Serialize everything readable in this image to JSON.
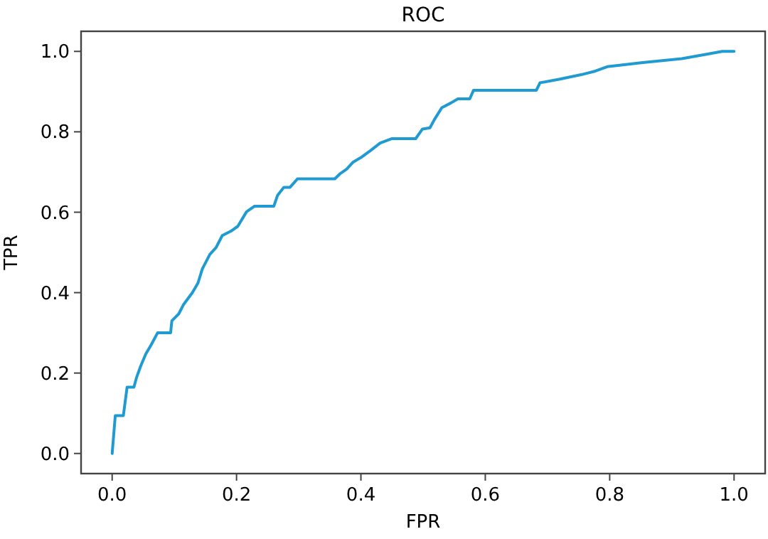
{
  "chart_data": {
    "type": "line",
    "title": "ROC",
    "xlabel": "FPR",
    "ylabel": "TPR",
    "xlim": [
      -0.05,
      1.05
    ],
    "ylim": [
      -0.05,
      1.05
    ],
    "xticks": [
      {
        "value": 0,
        "label": "0.0"
      },
      {
        "value": 0.2,
        "label": "0.2"
      },
      {
        "value": 0.4,
        "label": "0.4"
      },
      {
        "value": 0.6,
        "label": "0.6"
      },
      {
        "value": 0.8,
        "label": "0.8"
      },
      {
        "value": 1,
        "label": "1.0"
      }
    ],
    "yticks": [
      {
        "value": 0,
        "label": "0.0"
      },
      {
        "value": 0.2,
        "label": "0.2"
      },
      {
        "value": 0.4,
        "label": "0.4"
      },
      {
        "value": 0.6,
        "label": "0.6"
      },
      {
        "value": 0.8,
        "label": "0.8"
      },
      {
        "value": 1,
        "label": "1.0"
      }
    ],
    "grid": false,
    "marker": "none",
    "line_style": "solid",
    "series": [
      {
        "color": "#1f9bd1",
        "x": [
          0,
          0.005,
          0.018,
          0.024,
          0.035,
          0.039,
          0.046,
          0.054,
          0.063,
          0.073,
          0.094,
          0.096,
          0.107,
          0.115,
          0.129,
          0.138,
          0.145,
          0.157,
          0.167,
          0.177,
          0.191,
          0.202,
          0.216,
          0.229,
          0.26,
          0.266,
          0.276,
          0.286,
          0.298,
          0.358,
          0.366,
          0.377,
          0.387,
          0.4,
          0.416,
          0.431,
          0.45,
          0.488,
          0.499,
          0.511,
          0.518,
          0.53,
          0.545,
          0.556,
          0.575,
          0.581,
          0.682,
          0.688,
          0.72,
          0.754,
          0.777,
          0.796,
          0.853,
          0.916,
          0.956,
          0.981,
          1.0
        ],
        "values": [
          0,
          0.094,
          0.094,
          0.165,
          0.165,
          0.188,
          0.218,
          0.247,
          0.271,
          0.3,
          0.3,
          0.33,
          0.347,
          0.371,
          0.4,
          0.424,
          0.459,
          0.495,
          0.512,
          0.542,
          0.553,
          0.565,
          0.601,
          0.615,
          0.615,
          0.642,
          0.662,
          0.662,
          0.683,
          0.683,
          0.695,
          0.707,
          0.724,
          0.736,
          0.754,
          0.772,
          0.783,
          0.783,
          0.807,
          0.81,
          0.83,
          0.86,
          0.872,
          0.882,
          0.882,
          0.903,
          0.903,
          0.922,
          0.931,
          0.942,
          0.951,
          0.962,
          0.972,
          0.982,
          0.993,
          1.0,
          1.0
        ]
      }
    ]
  }
}
